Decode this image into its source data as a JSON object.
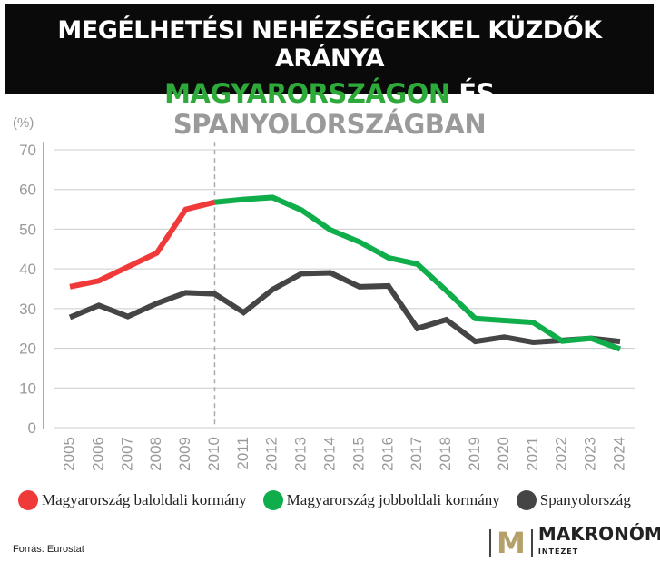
{
  "title": {
    "line1": "MEGÉLHETÉSI NEHÉZSÉGEKKEL KÜZDŐK ARÁNYA",
    "line2_a": "MAGYARORSZÁGON",
    "line2_b": "ÉS",
    "line2_c": "SPANYOLORSZÁGBAN"
  },
  "chart_data": {
    "type": "line",
    "ylabel": "(%)",
    "ylim": [
      0,
      70
    ],
    "yticks": [
      0,
      10,
      20,
      30,
      40,
      50,
      60,
      70
    ],
    "grid": true,
    "x": [
      2005,
      2006,
      2007,
      2008,
      2009,
      2010,
      2011,
      2012,
      2013,
      2014,
      2015,
      2016,
      2017,
      2018,
      2019,
      2020,
      2021,
      2022,
      2023,
      2024
    ],
    "divider_year": 2010,
    "series": [
      {
        "name": "Magyarország baloldali kormány",
        "color": "#f03a3a",
        "x": [
          2005,
          2006,
          2007,
          2008,
          2009,
          2010
        ],
        "values": [
          35.5,
          37,
          40.5,
          44,
          55,
          56.8
        ]
      },
      {
        "name": "Magyarország jobboldali kormány",
        "color": "#0fae4b",
        "x": [
          2010,
          2011,
          2012,
          2013,
          2014,
          2015,
          2016,
          2017,
          2018,
          2019,
          2020,
          2021,
          2022,
          2023,
          2024
        ],
        "values": [
          56.8,
          57.5,
          58,
          54.8,
          49.8,
          46.8,
          42.8,
          41.2,
          34.5,
          27.5,
          27,
          26.5,
          21.8,
          22.5,
          19.8
        ]
      },
      {
        "name": "Spanyolország",
        "color": "#454545",
        "x": [
          2005,
          2006,
          2007,
          2008,
          2009,
          2010,
          2011,
          2012,
          2013,
          2014,
          2015,
          2016,
          2017,
          2018,
          2019,
          2020,
          2021,
          2022,
          2023,
          2024
        ],
        "values": [
          27.8,
          30.8,
          28,
          31.3,
          34,
          33.7,
          29,
          34.8,
          38.8,
          39,
          35.5,
          35.7,
          25,
          27.2,
          21.7,
          22.8,
          21.5,
          22,
          22.5,
          21.7
        ]
      }
    ],
    "legend_placement": "bottom"
  },
  "source": "Forrás: Eurostat",
  "logo": {
    "mark": "M",
    "name": "MAKRONÓM",
    "sub": "INTÉZET"
  }
}
